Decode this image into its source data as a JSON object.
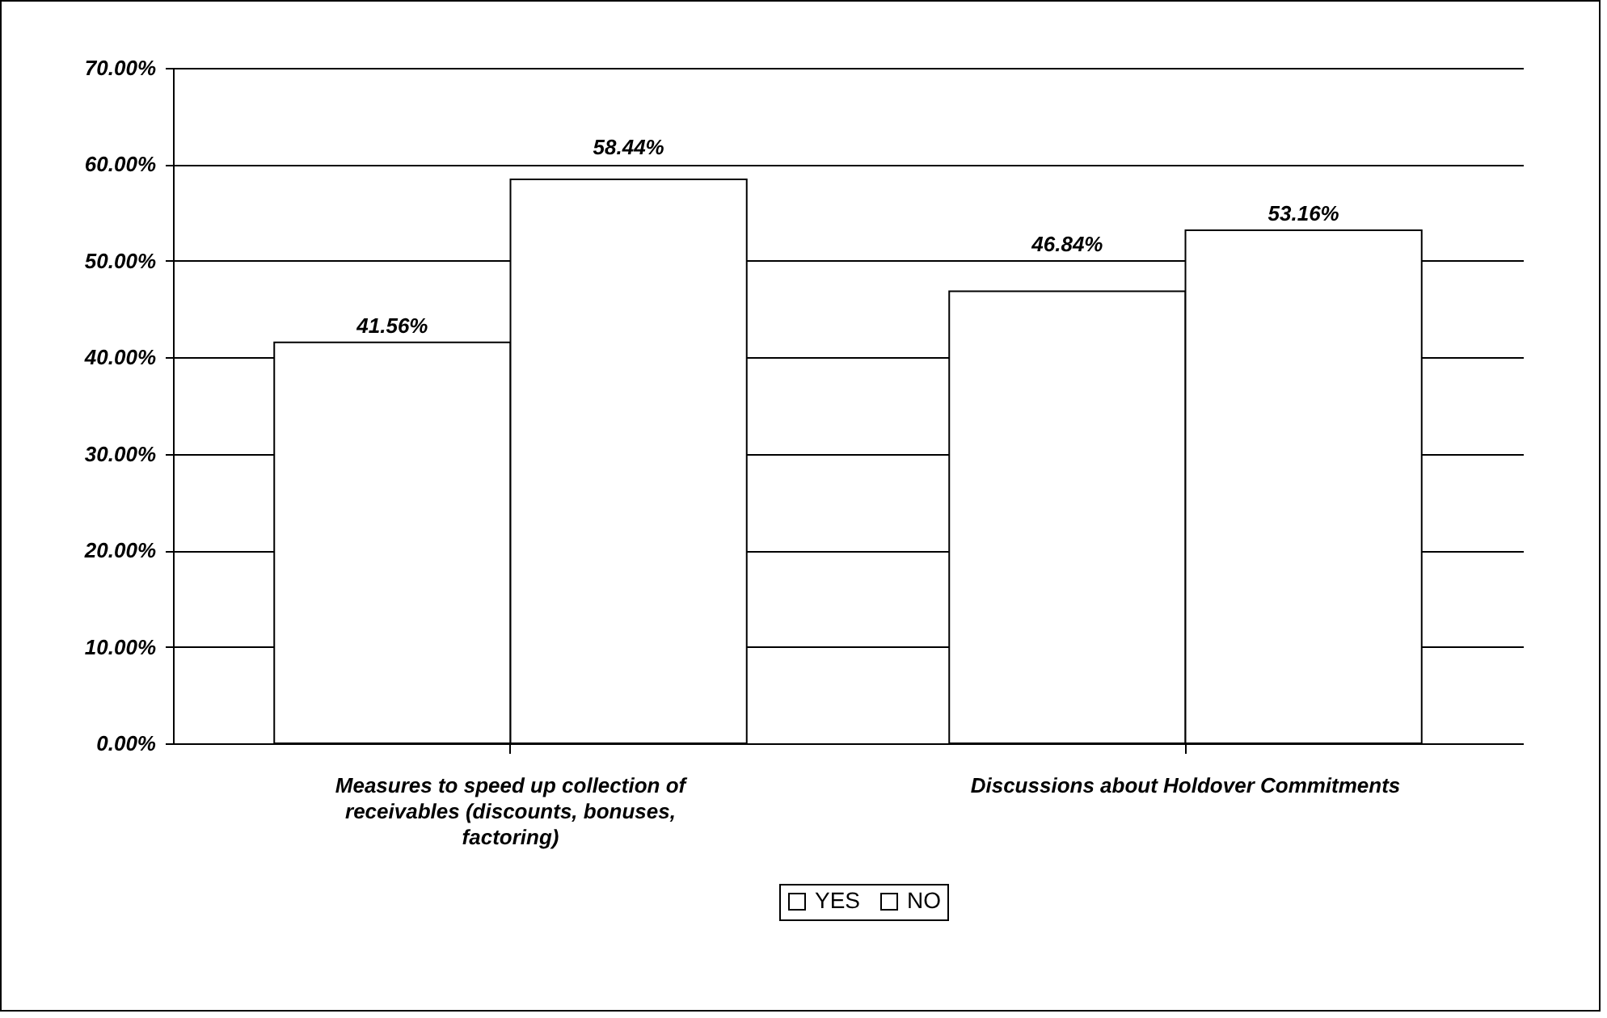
{
  "chart_data": {
    "type": "bar",
    "categories": [
      "Measures to speed up collection of receivables (discounts, bonuses, factoring)",
      "Discussions about Holdover Commitments"
    ],
    "series": [
      {
        "name": "YES",
        "color": "#ffffff",
        "values": [
          41.56,
          46.84
        ],
        "value_labels": [
          "41.56%",
          "46.84%"
        ]
      },
      {
        "name": "NO",
        "color": "#ffffff",
        "values": [
          58.44,
          53.16
        ],
        "value_labels": [
          "58.44%",
          "53.16%"
        ]
      }
    ],
    "ylim": [
      0,
      70
    ],
    "yticks": [
      {
        "value": 0,
        "label": "0.00%"
      },
      {
        "value": 10,
        "label": "10.00%"
      },
      {
        "value": 20,
        "label": "20.00%"
      },
      {
        "value": 30,
        "label": "30.00%"
      },
      {
        "value": 40,
        "label": "40.00%"
      },
      {
        "value": 50,
        "label": "50.00%"
      },
      {
        "value": 60,
        "label": "60.00%"
      },
      {
        "value": 70,
        "label": "70.00%"
      }
    ],
    "grid": "y",
    "legend": "bottom"
  }
}
